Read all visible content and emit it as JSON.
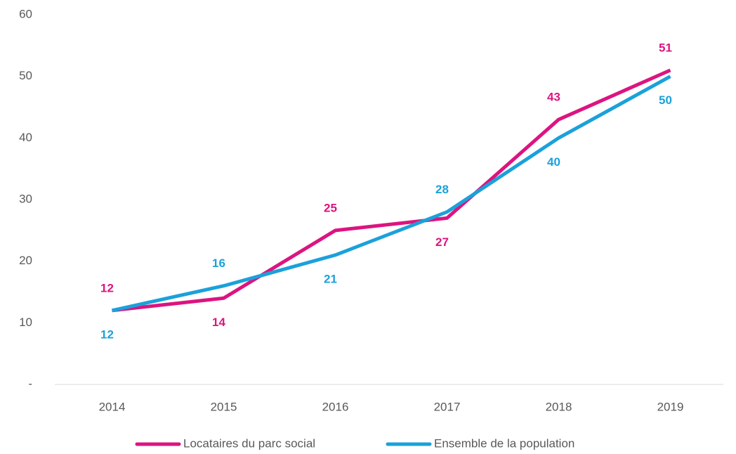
{
  "chart_data": {
    "type": "line",
    "categories": [
      "2014",
      "2015",
      "2016",
      "2017",
      "2018",
      "2019"
    ],
    "series": [
      {
        "name": "Locataires du parc social",
        "color": "#dc1480",
        "values": [
          12,
          14,
          25,
          27,
          43,
          51
        ]
      },
      {
        "name": "Ensemble de la population",
        "color": "#1ba1da",
        "values": [
          12,
          16,
          21,
          28,
          40,
          50
        ]
      }
    ],
    "ylim": [
      0,
      60
    ],
    "yticks": [
      {
        "value": 0,
        "label": "-"
      },
      10,
      20,
      30,
      40,
      50,
      60
    ],
    "grid": false,
    "legend": "bottom"
  }
}
